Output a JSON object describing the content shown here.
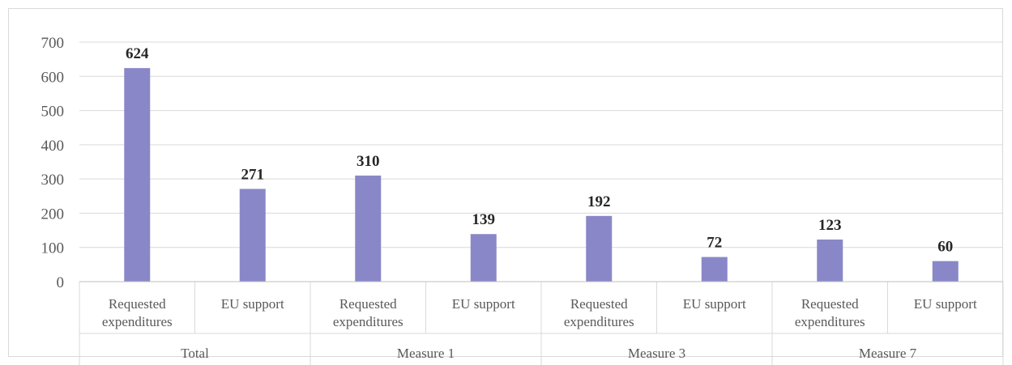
{
  "chart_data": {
    "type": "bar",
    "title": "",
    "xlabel": "",
    "ylabel": "",
    "ylim": [
      0,
      700
    ],
    "yticks": [
      0,
      100,
      200,
      300,
      400,
      500,
      600,
      700
    ],
    "grid": true,
    "legend": "none",
    "bar_color": "#8a87c8",
    "groups": [
      {
        "label": "Total",
        "categories": [
          {
            "label": [
              "Requested",
              "expenditures"
            ],
            "value": 624
          },
          {
            "label": [
              "EU support"
            ],
            "value": 271
          }
        ]
      },
      {
        "label": "Measure 1",
        "categories": [
          {
            "label": [
              "Requested",
              "expenditures"
            ],
            "value": 310
          },
          {
            "label": [
              "EU support"
            ],
            "value": 139
          }
        ]
      },
      {
        "label": "Measure 3",
        "categories": [
          {
            "label": [
              "Requested",
              "expenditures"
            ],
            "value": 192
          },
          {
            "label": [
              "EU support"
            ],
            "value": 72
          }
        ]
      },
      {
        "label": "Measure 7",
        "categories": [
          {
            "label": [
              "Requested",
              "expenditures"
            ],
            "value": 123
          },
          {
            "label": [
              "EU support"
            ],
            "value": 60
          }
        ]
      }
    ]
  }
}
